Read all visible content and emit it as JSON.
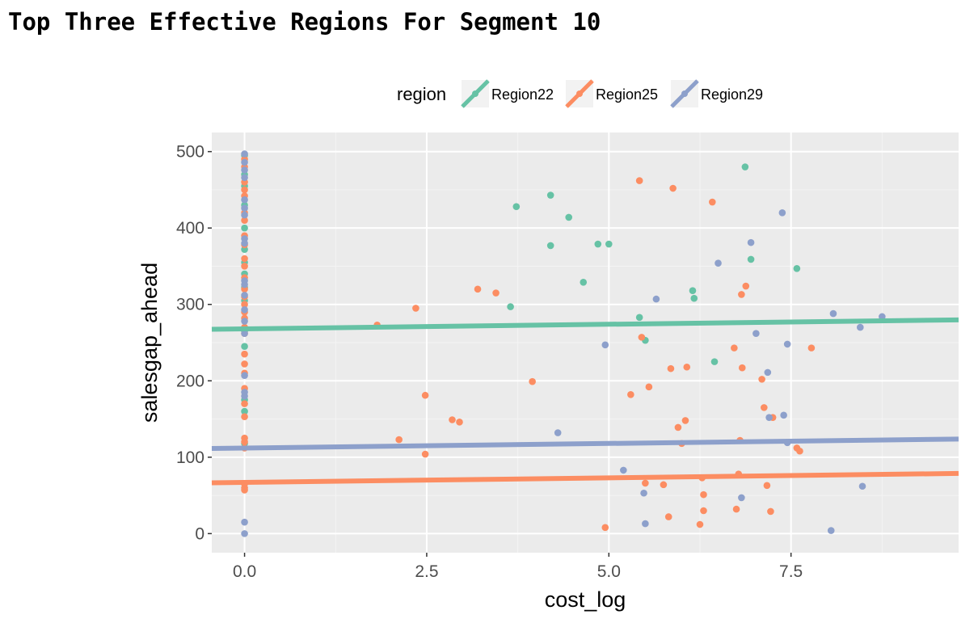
{
  "chart_data": {
    "type": "scatter",
    "title": "Top Three Effective Regions For Segment 10",
    "xlabel": "cost_log",
    "ylabel": "salesgap_ahead",
    "xlim": [
      -0.45,
      9.8
    ],
    "ylim": [
      -25,
      525
    ],
    "x_ticks": [
      "0.0",
      "2.5",
      "5.0",
      "7.5"
    ],
    "x_tick_values": [
      0,
      2.5,
      5,
      7.5
    ],
    "y_ticks": [
      "0",
      "100",
      "200",
      "300",
      "400",
      "500"
    ],
    "y_tick_values": [
      0,
      100,
      200,
      300,
      400,
      500
    ],
    "grid": true,
    "legend": {
      "title": "region",
      "placement": "top"
    },
    "series": [
      {
        "name": "Region22",
        "color": "#66c2a5",
        "points": [
          [
            0,
            495
          ],
          [
            0,
            470
          ],
          [
            0,
            455
          ],
          [
            0,
            430
          ],
          [
            0,
            400
          ],
          [
            0,
            372
          ],
          [
            0,
            355
          ],
          [
            0,
            340
          ],
          [
            0,
            322
          ],
          [
            0,
            305
          ],
          [
            0,
            265
          ],
          [
            0,
            245
          ],
          [
            0,
            175
          ],
          [
            0,
            160
          ],
          [
            0,
            118
          ],
          [
            3.73,
            428
          ],
          [
            4.2,
            443
          ],
          [
            4.45,
            414
          ],
          [
            4.2,
            377
          ],
          [
            4.85,
            379
          ],
          [
            5.0,
            379
          ],
          [
            3.65,
            297
          ],
          [
            4.65,
            329
          ],
          [
            5.42,
            283
          ],
          [
            5.5,
            253
          ],
          [
            6.15,
            318
          ],
          [
            6.17,
            308
          ],
          [
            6.45,
            225
          ],
          [
            6.87,
            480
          ],
          [
            6.95,
            359
          ],
          [
            7.58,
            347
          ]
        ],
        "fit": {
          "intercept": 268,
          "slope": 1.2
        }
      },
      {
        "name": "Region25",
        "color": "#fc8d62",
        "points": [
          [
            0,
            490
          ],
          [
            0,
            480
          ],
          [
            0,
            460
          ],
          [
            0,
            450
          ],
          [
            0,
            442
          ],
          [
            0,
            420
          ],
          [
            0,
            410
          ],
          [
            0,
            390
          ],
          [
            0,
            378
          ],
          [
            0,
            360
          ],
          [
            0,
            350
          ],
          [
            0,
            335
          ],
          [
            0,
            320
          ],
          [
            0,
            310
          ],
          [
            0,
            300
          ],
          [
            0,
            290
          ],
          [
            0,
            282
          ],
          [
            0,
            270
          ],
          [
            0,
            262
          ],
          [
            0,
            235
          ],
          [
            0,
            222
          ],
          [
            0,
            210
          ],
          [
            0,
            190
          ],
          [
            0,
            170
          ],
          [
            0,
            153
          ],
          [
            0,
            125
          ],
          [
            0,
            120
          ],
          [
            0,
            112
          ],
          [
            0,
            65
          ],
          [
            0,
            60
          ],
          [
            0,
            57
          ],
          [
            1.82,
            273
          ],
          [
            2.12,
            123
          ],
          [
            2.35,
            295
          ],
          [
            2.48,
            181
          ],
          [
            2.48,
            104
          ],
          [
            2.85,
            149
          ],
          [
            2.95,
            146
          ],
          [
            3.2,
            320
          ],
          [
            3.45,
            315
          ],
          [
            3.95,
            199
          ],
          [
            4.95,
            8
          ],
          [
            5.3,
            182
          ],
          [
            5.42,
            462
          ],
          [
            5.45,
            257
          ],
          [
            5.5,
            66
          ],
          [
            5.55,
            192
          ],
          [
            5.75,
            64
          ],
          [
            5.82,
            22
          ],
          [
            5.85,
            216
          ],
          [
            5.88,
            452
          ],
          [
            5.95,
            139
          ],
          [
            6.0,
            118
          ],
          [
            6.05,
            148
          ],
          [
            6.07,
            218
          ],
          [
            6.25,
            12
          ],
          [
            6.28,
            73
          ],
          [
            6.3,
            51
          ],
          [
            6.3,
            30
          ],
          [
            6.42,
            434
          ],
          [
            6.72,
            243
          ],
          [
            6.75,
            32
          ],
          [
            6.78,
            78
          ],
          [
            6.8,
            122
          ],
          [
            6.82,
            313
          ],
          [
            6.83,
            217
          ],
          [
            6.88,
            324
          ],
          [
            7.1,
            202
          ],
          [
            7.13,
            165
          ],
          [
            7.17,
            63
          ],
          [
            7.22,
            29
          ],
          [
            7.25,
            152
          ],
          [
            7.58,
            112
          ],
          [
            7.62,
            108
          ],
          [
            7.78,
            243
          ]
        ],
        "fit": {
          "intercept": 67,
          "slope": 1.2
        }
      },
      {
        "name": "Region29",
        "color": "#8da0cb",
        "points": [
          [
            0,
            497
          ],
          [
            0,
            486
          ],
          [
            0,
            476
          ],
          [
            0,
            466
          ],
          [
            0,
            437
          ],
          [
            0,
            426
          ],
          [
            0,
            417
          ],
          [
            0,
            386
          ],
          [
            0,
            380
          ],
          [
            0,
            331
          ],
          [
            0,
            326
          ],
          [
            0,
            312
          ],
          [
            0,
            293
          ],
          [
            0,
            278
          ],
          [
            0,
            262
          ],
          [
            0,
            207
          ],
          [
            0,
            185
          ],
          [
            0,
            180
          ],
          [
            0,
            15
          ],
          [
            0,
            0
          ],
          [
            4.3,
            132
          ],
          [
            4.95,
            247
          ],
          [
            5.2,
            83
          ],
          [
            5.48,
            53
          ],
          [
            5.5,
            13
          ],
          [
            5.65,
            307
          ],
          [
            6.5,
            354
          ],
          [
            6.82,
            47
          ],
          [
            6.95,
            381
          ],
          [
            7.02,
            262
          ],
          [
            7.18,
            211
          ],
          [
            7.2,
            152
          ],
          [
            7.38,
            420
          ],
          [
            7.4,
            155
          ],
          [
            7.45,
            119
          ],
          [
            7.45,
            248
          ],
          [
            8.05,
            4
          ],
          [
            8.08,
            288
          ],
          [
            8.45,
            270
          ],
          [
            8.48,
            62
          ],
          [
            8.75,
            284
          ]
        ],
        "fit": {
          "intercept": 112,
          "slope": 1.2
        }
      }
    ]
  }
}
